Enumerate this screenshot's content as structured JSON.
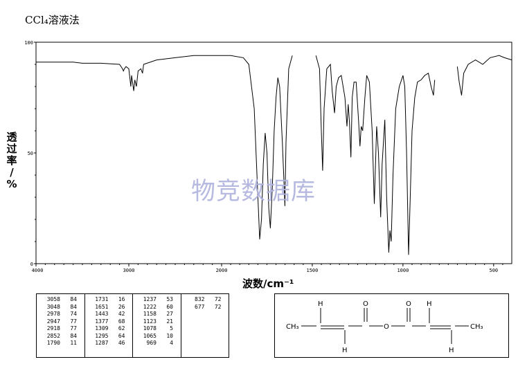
{
  "title": "CCl₄溶液法",
  "watermark": "物竞数据库",
  "chart_data": {
    "type": "line",
    "xlabel": "波数/cm⁻¹",
    "ylabel": "透过率/%",
    "xlim": [
      4000,
      400
    ],
    "ylim": [
      0,
      100
    ],
    "x_tick_labels": [
      "4000",
      "3000",
      "2000",
      "1500",
      "1000",
      "500"
    ],
    "y_tick_labels": [
      "0",
      "50",
      "100"
    ],
    "series": [
      {
        "segments": [
          [
            [
              4000,
              91
            ],
            [
              3800,
              91
            ],
            [
              3600,
              91
            ],
            [
              3500,
              90.5
            ],
            [
              3300,
              90.5
            ],
            [
              3100,
              90
            ],
            [
              3068,
              88
            ],
            [
              3058,
              87
            ],
            [
              3048,
              88
            ],
            [
              3030,
              89
            ],
            [
              3000,
              88
            ],
            [
              2978,
              80
            ],
            [
              2970,
              85
            ],
            [
              2960,
              82
            ],
            [
              2947,
              78
            ],
            [
              2935,
              83
            ],
            [
              2918,
              80
            ],
            [
              2900,
              87
            ],
            [
              2870,
              88
            ],
            [
              2852,
              86
            ],
            [
              2840,
              90
            ],
            [
              2700,
              92
            ],
            [
              2500,
              93
            ],
            [
              2300,
              94
            ],
            [
              2100,
              94
            ],
            [
              1950,
              94
            ],
            [
              1880,
              93
            ],
            [
              1850,
              90
            ],
            [
              1820,
              70
            ],
            [
              1800,
              30
            ],
            [
              1790,
              11
            ],
            [
              1780,
              20
            ],
            [
              1770,
              45
            ],
            [
              1760,
              59
            ],
            [
              1750,
              50
            ],
            [
              1740,
              25
            ],
            [
              1731,
              16
            ],
            [
              1720,
              35
            ],
            [
              1710,
              60
            ],
            [
              1700,
              75
            ],
            [
              1690,
              84
            ],
            [
              1680,
              80
            ],
            [
              1665,
              55
            ],
            [
              1655,
              35
            ],
            [
              1651,
              26
            ],
            [
              1645,
              55
            ],
            [
              1630,
              88
            ],
            [
              1610,
              94
            ]
          ],
          [
            [
              1480,
              94
            ],
            [
              1460,
              88
            ],
            [
              1450,
              60
            ],
            [
              1443,
              42
            ],
            [
              1435,
              70
            ],
            [
              1420,
              88
            ],
            [
              1400,
              90
            ],
            [
              1390,
              78
            ],
            [
              1377,
              68
            ],
            [
              1368,
              80
            ],
            [
              1355,
              84
            ],
            [
              1340,
              85
            ],
            [
              1320,
              75
            ],
            [
              1309,
              62
            ],
            [
              1302,
              72
            ],
            [
              1295,
              64
            ],
            [
              1287,
              48
            ],
            [
              1280,
              75
            ],
            [
              1270,
              82
            ],
            [
              1258,
              82
            ],
            [
              1245,
              65
            ],
            [
              1237,
              53
            ],
            [
              1230,
              62
            ],
            [
              1222,
              60
            ],
            [
              1210,
              75
            ],
            [
              1200,
              85
            ],
            [
              1185,
              82
            ],
            [
              1170,
              60
            ],
            [
              1158,
              27
            ],
            [
              1145,
              62
            ],
            [
              1135,
              50
            ],
            [
              1123,
              21
            ],
            [
              1115,
              45
            ],
            [
              1100,
              65
            ],
            [
              1090,
              30
            ],
            [
              1078,
              5
            ],
            [
              1072,
              15
            ],
            [
              1065,
              10
            ],
            [
              1055,
              40
            ],
            [
              1040,
              70
            ],
            [
              1020,
              80
            ],
            [
              1000,
              85
            ],
            [
              990,
              80
            ],
            [
              980,
              50
            ],
            [
              969,
              4
            ],
            [
              960,
              30
            ],
            [
              950,
              60
            ],
            [
              935,
              75
            ],
            [
              920,
              82
            ],
            [
              900,
              83
            ],
            [
              880,
              85
            ],
            [
              860,
              86
            ],
            [
              845,
              80
            ],
            [
              832,
              76
            ],
            [
              825,
              83
            ]
          ],
          [
            [
              700,
              89
            ],
            [
              690,
              82
            ],
            [
              677,
              76
            ],
            [
              665,
              86
            ],
            [
              640,
              90
            ],
            [
              600,
              92
            ],
            [
              560,
              90
            ],
            [
              520,
              93
            ],
            [
              470,
              94
            ],
            [
              440,
              93
            ],
            [
              400,
              92
            ]
          ]
        ]
      }
    ],
    "peaks": [
      [
        3058,
        84
      ],
      [
        3048,
        84
      ],
      [
        2978,
        74
      ],
      [
        2947,
        77
      ],
      [
        2918,
        77
      ],
      [
        2852,
        84
      ],
      [
        1790,
        11
      ],
      [
        1731,
        16
      ],
      [
        1651,
        26
      ],
      [
        1443,
        42
      ],
      [
        1377,
        68
      ],
      [
        1309,
        62
      ],
      [
        1295,
        64
      ],
      [
        1287,
        46
      ],
      [
        1237,
        53
      ],
      [
        1222,
        60
      ],
      [
        1158,
        27
      ],
      [
        1123,
        21
      ],
      [
        1078,
        5
      ],
      [
        1065,
        10
      ],
      [
        969,
        4
      ],
      [
        832,
        72
      ],
      [
        677,
        72
      ]
    ]
  },
  "peak_table": [
    [
      [
        "3058",
        "84"
      ],
      [
        "3048",
        "84"
      ],
      [
        "2978",
        "74"
      ],
      [
        "2947",
        "77"
      ],
      [
        "2918",
        "77"
      ],
      [
        "2852",
        "84"
      ],
      [
        "1790",
        "11"
      ]
    ],
    [
      [
        "1731",
        "16"
      ],
      [
        "1651",
        "26"
      ],
      [
        "1443",
        "42"
      ],
      [
        "1377",
        "68"
      ],
      [
        "1309",
        "62"
      ],
      [
        "1295",
        "64"
      ],
      [
        "1287",
        "46"
      ]
    ],
    [
      [
        "1237",
        "53"
      ],
      [
        "1222",
        "60"
      ],
      [
        "1158",
        "27"
      ],
      [
        "1123",
        "21"
      ],
      [
        "1078",
        "5"
      ],
      [
        "1065",
        "10"
      ],
      [
        "969",
        "4"
      ]
    ],
    [
      [
        "832",
        "72"
      ],
      [
        "677",
        "72"
      ]
    ]
  ],
  "structure": {
    "left_group": "CH₃",
    "right_group": "CH₃",
    "oxygen": "O",
    "hydrogen": "H"
  }
}
